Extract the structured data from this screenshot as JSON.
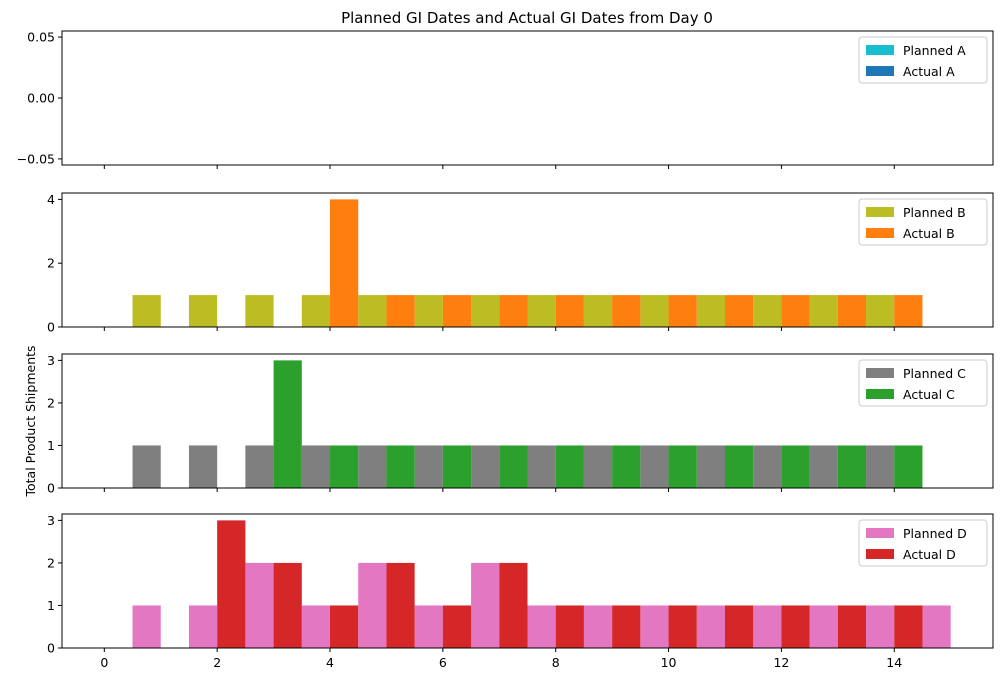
{
  "title": "Planned GI Dates and Actual GI Dates from Day 0",
  "ylabel": "Total Product Shipments",
  "xlim": [
    -0.75,
    15.75
  ],
  "xticks": [
    0,
    2,
    4,
    6,
    8,
    10,
    12,
    14
  ],
  "chart_data": [
    {
      "type": "bar",
      "panel": "A",
      "ylim": [
        -0.055,
        0.055
      ],
      "yticks": [
        -0.05,
        0.0,
        0.05
      ],
      "ytick_labels": [
        "−0.05",
        "0.00",
        "0.05"
      ],
      "legend_position": "upper right",
      "series": [
        {
          "name": "Planned A",
          "color": "#17becf",
          "x": [],
          "values": []
        },
        {
          "name": "Actual A",
          "color": "#1f77b4",
          "x": [],
          "values": []
        }
      ]
    },
    {
      "type": "bar",
      "panel": "B",
      "ylim": [
        0,
        4.2
      ],
      "yticks": [
        0,
        2,
        4
      ],
      "ytick_labels": [
        "0",
        "2",
        "4"
      ],
      "legend_position": "upper right",
      "series": [
        {
          "name": "Planned B",
          "color": "#bcbd22",
          "x": [
            0.75,
            1.75,
            2.75,
            3.75,
            4.75,
            5.75,
            6.75,
            7.75,
            8.75,
            9.75,
            10.75,
            11.75,
            12.75,
            13.75
          ],
          "values": [
            1,
            1,
            1,
            1,
            1,
            1,
            1,
            1,
            1,
            1,
            1,
            1,
            1,
            1
          ]
        },
        {
          "name": "Actual B",
          "color": "#ff7f0e",
          "x": [
            4.25,
            5.25,
            6.25,
            7.25,
            8.25,
            9.25,
            10.25,
            11.25,
            12.25,
            13.25,
            14.25
          ],
          "values": [
            4,
            1,
            1,
            1,
            1,
            1,
            1,
            1,
            1,
            1,
            1
          ]
        }
      ]
    },
    {
      "type": "bar",
      "panel": "C",
      "ylim": [
        0,
        3.15
      ],
      "yticks": [
        0,
        1,
        2,
        3
      ],
      "ytick_labels": [
        "0",
        "1",
        "2",
        "3"
      ],
      "legend_position": "upper right",
      "series": [
        {
          "name": "Planned C",
          "color": "#7f7f7f",
          "x": [
            0.75,
            1.75,
            2.75,
            3.75,
            4.75,
            5.75,
            6.75,
            7.75,
            8.75,
            9.75,
            10.75,
            11.75,
            12.75,
            13.75
          ],
          "values": [
            1,
            1,
            1,
            1,
            1,
            1,
            1,
            1,
            1,
            1,
            1,
            1,
            1,
            1
          ]
        },
        {
          "name": "Actual C",
          "color": "#2ca02c",
          "x": [
            3.25,
            4.25,
            5.25,
            6.25,
            7.25,
            8.25,
            9.25,
            10.25,
            11.25,
            12.25,
            13.25,
            14.25
          ],
          "values": [
            3,
            1,
            1,
            1,
            1,
            1,
            1,
            1,
            1,
            1,
            1,
            1
          ]
        }
      ]
    },
    {
      "type": "bar",
      "panel": "D",
      "ylim": [
        0,
        3.15
      ],
      "yticks": [
        0,
        1,
        2,
        3
      ],
      "ytick_labels": [
        "0",
        "1",
        "2",
        "3"
      ],
      "legend_position": "upper right",
      "series": [
        {
          "name": "Planned D",
          "color": "#e377c2",
          "x": [
            0.75,
            1.75,
            2.75,
            3.75,
            4.75,
            5.75,
            6.75,
            7.75,
            8.75,
            9.75,
            10.75,
            11.75,
            12.75,
            13.75,
            14.75
          ],
          "values": [
            1,
            1,
            2,
            1,
            2,
            1,
            2,
            1,
            1,
            1,
            1,
            1,
            1,
            1,
            1
          ]
        },
        {
          "name": "Actual D",
          "color": "#d62728",
          "x": [
            2.25,
            3.25,
            4.25,
            5.25,
            6.25,
            7.25,
            8.25,
            9.25,
            10.25,
            11.25,
            12.25,
            13.25,
            14.25
          ],
          "values": [
            3,
            2,
            1,
            2,
            1,
            2,
            1,
            1,
            1,
            1,
            1,
            1,
            1
          ]
        }
      ]
    }
  ]
}
